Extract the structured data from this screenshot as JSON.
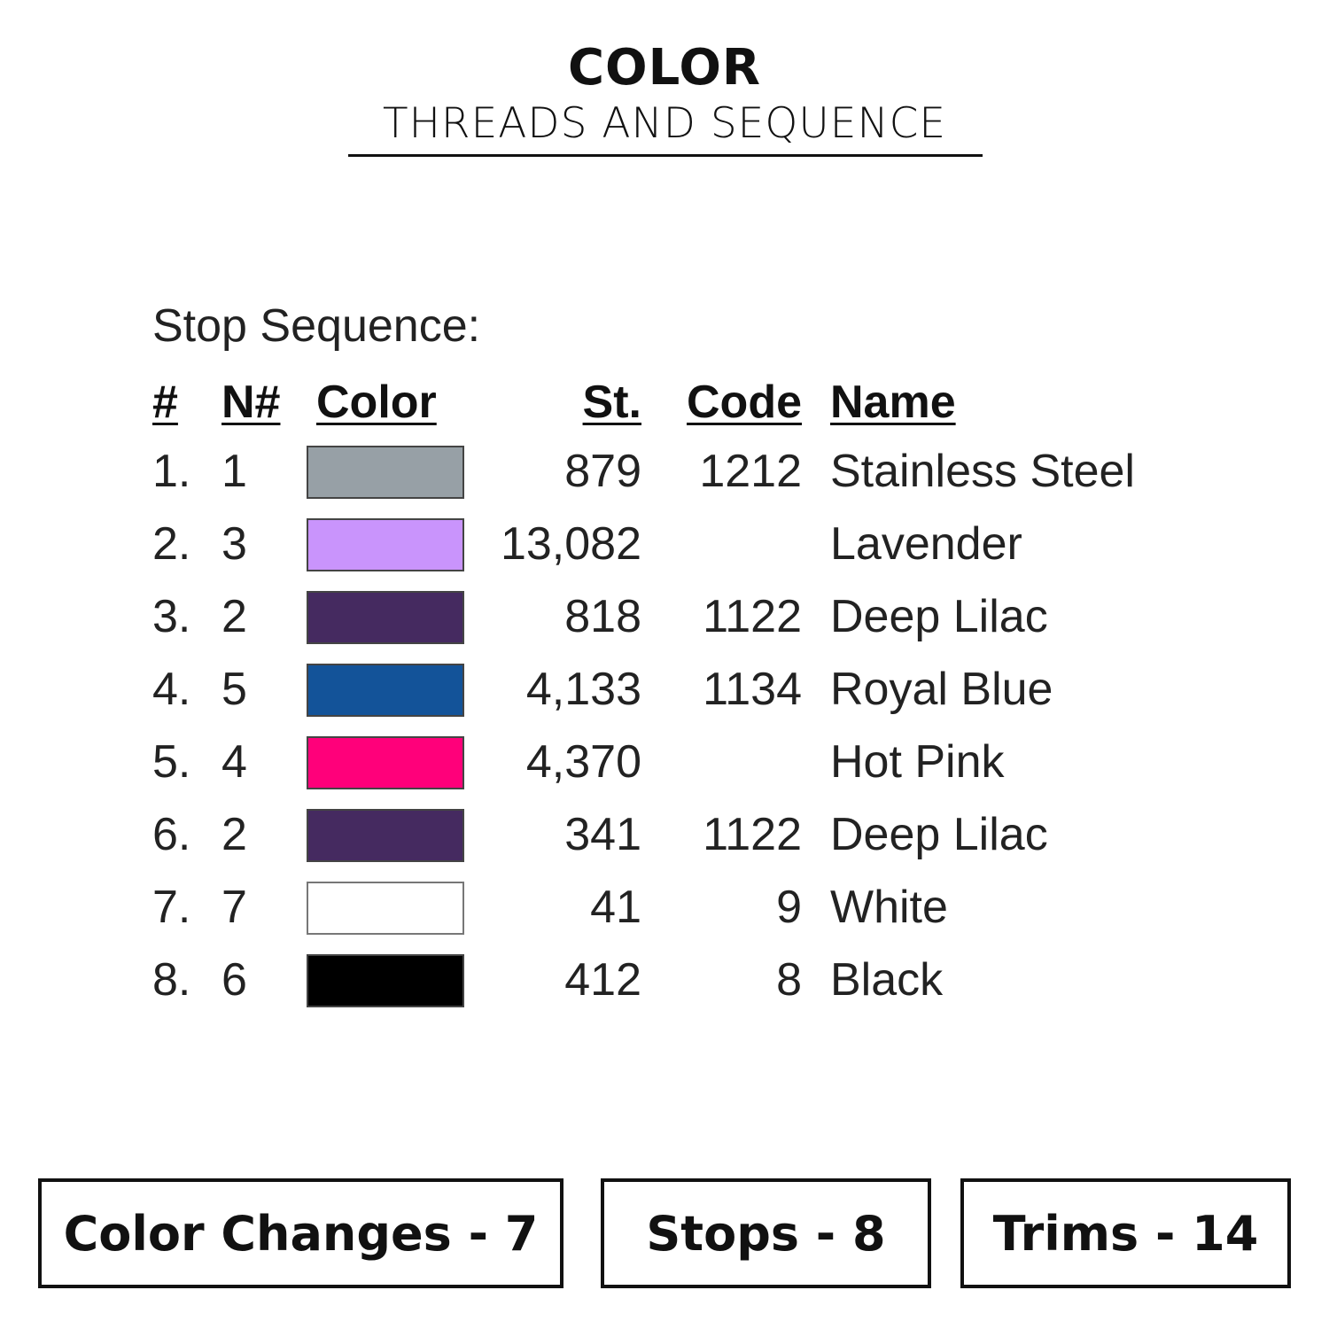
{
  "header": {
    "title": "COLOR",
    "subtitle": "THREADS AND SEQUENCE"
  },
  "sequence": {
    "label": "Stop Sequence:",
    "columns": [
      "#",
      "N#",
      "Color",
      "St.",
      "Code",
      "Name"
    ],
    "rows": [
      {
        "num": "1.",
        "n": "1",
        "color": "#97a0a6",
        "st": "879",
        "code": "1212",
        "name": "Stainless Steel"
      },
      {
        "num": "2.",
        "n": "3",
        "color": "#c994fc",
        "st": "13,082",
        "code": "",
        "name": "Lavender"
      },
      {
        "num": "3.",
        "n": "2",
        "color": "#452a60",
        "st": "818",
        "code": "1122",
        "name": "Deep Lilac"
      },
      {
        "num": "4.",
        "n": "5",
        "color": "#135399",
        "st": "4,133",
        "code": "1134",
        "name": "Royal Blue"
      },
      {
        "num": "5.",
        "n": "4",
        "color": "#ff007a",
        "st": "4,370",
        "code": "",
        "name": "Hot Pink"
      },
      {
        "num": "6.",
        "n": "2",
        "color": "#452a60",
        "st": "341",
        "code": "1122",
        "name": "Deep Lilac"
      },
      {
        "num": "7.",
        "n": "7",
        "color": "#ffffff",
        "st": "41",
        "code": "9",
        "name": "White"
      },
      {
        "num": "8.",
        "n": "6",
        "color": "#000000",
        "st": "412",
        "code": "8",
        "name": "Black"
      }
    ]
  },
  "summary": {
    "color_changes": "Color Changes - 7",
    "stops": "Stops - 8",
    "trims": "Trims - 14"
  }
}
